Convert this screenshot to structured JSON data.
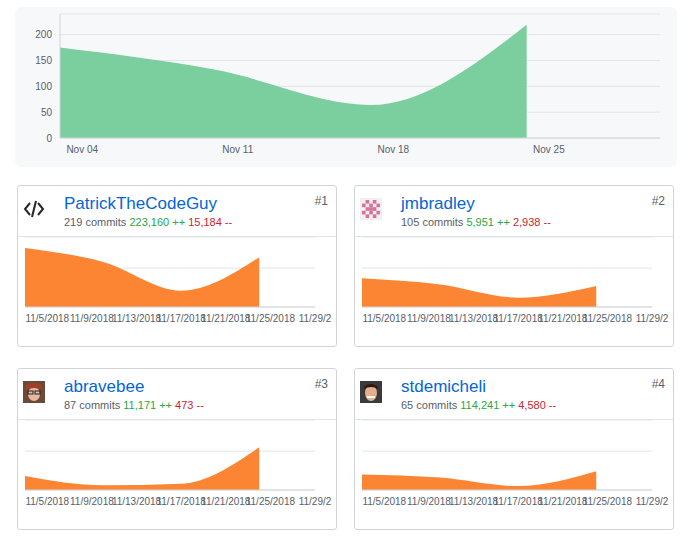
{
  "chart_data": {
    "type": "area",
    "color": "#7bcf9e",
    "grid": true,
    "categories": [
      null,
      "Nov 04",
      null,
      null,
      null,
      null,
      null,
      null,
      "Nov 11",
      null,
      null,
      null,
      null,
      null,
      null,
      "Nov 18",
      null,
      null,
      null,
      null,
      null,
      null,
      "Nov 25",
      null,
      null,
      null,
      null,
      null
    ],
    "values": [
      175,
      null,
      null,
      null,
      null,
      null,
      null,
      132,
      null,
      null,
      null,
      null,
      null,
      null,
      64,
      null,
      null,
      null,
      null,
      null,
      null,
      219,
      null,
      null,
      null,
      null,
      null,
      null
    ],
    "ylim": [
      0,
      240
    ],
    "yticks": [
      0,
      50,
      100,
      150,
      200
    ]
  },
  "contributors": [
    {
      "rank": "#1",
      "name": "PatrickTheCodeGuy",
      "commits": "219 commits",
      "additions": "223,160 ++",
      "deletions": "15,184 --",
      "chart_data": {
        "type": "area",
        "color": "#fb8532",
        "grid": true,
        "categories": [
          null,
          null,
          "11/5/2018",
          null,
          null,
          null,
          "11/9/2018",
          null,
          null,
          null,
          "11/13/2018",
          null,
          null,
          null,
          "11/17/2018",
          null,
          null,
          null,
          "11/21/2018",
          null,
          null,
          null,
          "11/25/2018",
          null,
          null,
          null,
          "11/29/2"
        ],
        "values": [
          76,
          null,
          null,
          null,
          null,
          null,
          null,
          58,
          null,
          null,
          null,
          null,
          null,
          null,
          21,
          null,
          null,
          null,
          null,
          null,
          null,
          64,
          null,
          null,
          null,
          null,
          null
        ],
        "ylim": [
          0,
          90
        ],
        "yticks": [
          50
        ]
      }
    },
    {
      "rank": "#2",
      "name": "jmbradley",
      "commits": "105 commits",
      "additions": "5,951 ++",
      "deletions": "2,938 --",
      "chart_data": {
        "type": "area",
        "color": "#fb8532",
        "grid": true,
        "categories": [
          null,
          null,
          "11/5/2018",
          null,
          null,
          null,
          "11/9/2018",
          null,
          null,
          null,
          "11/13/2018",
          null,
          null,
          null,
          "11/17/2018",
          null,
          null,
          null,
          "11/21/2018",
          null,
          null,
          null,
          "11/25/2018",
          null,
          null,
          null,
          "11/29/2"
        ],
        "values": [
          37,
          null,
          null,
          null,
          null,
          null,
          null,
          29,
          null,
          null,
          null,
          null,
          null,
          null,
          12,
          null,
          null,
          null,
          null,
          null,
          null,
          27,
          null,
          null,
          null,
          null,
          null
        ],
        "ylim": [
          0,
          90
        ],
        "yticks": [
          50
        ]
      }
    },
    {
      "rank": "#3",
      "name": "abravebee",
      "commits": "87 commits",
      "additions": "11,171 ++",
      "deletions": "473 --",
      "chart_data": {
        "type": "area",
        "color": "#fb8532",
        "grid": true,
        "categories": [
          null,
          null,
          "11/5/2018",
          null,
          null,
          null,
          "11/9/2018",
          null,
          null,
          null,
          "11/13/2018",
          null,
          null,
          null,
          "11/17/2018",
          null,
          null,
          null,
          "11/21/2018",
          null,
          null,
          null,
          "11/25/2018",
          null,
          null,
          null,
          "11/29/2"
        ],
        "values": [
          18,
          null,
          null,
          null,
          null,
          null,
          null,
          6,
          null,
          null,
          null,
          null,
          null,
          null,
          8,
          null,
          null,
          null,
          null,
          null,
          null,
          55,
          null,
          null,
          null,
          null,
          null
        ],
        "ylim": [
          0,
          90
        ],
        "yticks": [
          50
        ]
      }
    },
    {
      "rank": "#4",
      "name": "stdemicheli",
      "commits": "65 commits",
      "additions": "114,241 ++",
      "deletions": "4,580 --",
      "chart_data": {
        "type": "area",
        "color": "#fb8532",
        "grid": true,
        "categories": [
          null,
          null,
          "11/5/2018",
          null,
          null,
          null,
          "11/9/2018",
          null,
          null,
          null,
          "11/13/2018",
          null,
          null,
          null,
          "11/17/2018",
          null,
          null,
          null,
          "11/21/2018",
          null,
          null,
          null,
          "11/25/2018",
          null,
          null,
          null,
          "11/29/2"
        ],
        "values": [
          20,
          null,
          null,
          null,
          null,
          null,
          null,
          16,
          null,
          null,
          null,
          null,
          null,
          null,
          5,
          null,
          null,
          null,
          null,
          null,
          null,
          24,
          null,
          null,
          null,
          null,
          null
        ],
        "ylim": [
          0,
          90
        ],
        "yticks": [
          50
        ]
      }
    }
  ]
}
